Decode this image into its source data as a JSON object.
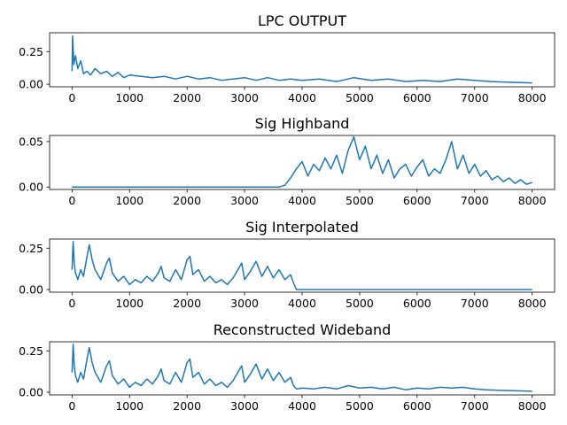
{
  "chart_data": [
    {
      "type": "line",
      "title": "LPC OUTPUT",
      "xlim": [
        -390,
        8390
      ],
      "ylim": [
        -0.02,
        0.395
      ],
      "xticks": [
        0,
        1000,
        2000,
        3000,
        4000,
        5000,
        6000,
        7000,
        8000
      ],
      "yticks": [
        0.0,
        0.25
      ],
      "ytick_labels": [
        "0.00",
        "0.25"
      ],
      "color": "#1f77b4",
      "series": [
        {
          "x": [
            0,
            10,
            30,
            60,
            100,
            150,
            200,
            260,
            320,
            400,
            500,
            600,
            700,
            800,
            900,
            1000,
            1200,
            1400,
            1600,
            1800,
            2000,
            2200,
            2400,
            2600,
            2800,
            3000,
            3200,
            3400,
            3600,
            3800,
            4000,
            4300,
            4600,
            4900,
            5200,
            5500,
            5800,
            6100,
            6400,
            6700,
            7000,
            7300,
            7600,
            8000
          ],
          "y": [
            0.1,
            0.37,
            0.15,
            0.22,
            0.12,
            0.18,
            0.08,
            0.1,
            0.07,
            0.12,
            0.08,
            0.1,
            0.06,
            0.09,
            0.05,
            0.07,
            0.06,
            0.05,
            0.06,
            0.04,
            0.06,
            0.04,
            0.05,
            0.03,
            0.04,
            0.05,
            0.03,
            0.05,
            0.03,
            0.04,
            0.03,
            0.04,
            0.02,
            0.05,
            0.03,
            0.04,
            0.02,
            0.03,
            0.02,
            0.04,
            0.03,
            0.02,
            0.015,
            0.01
          ]
        }
      ]
    },
    {
      "type": "line",
      "title": "Sig Highband",
      "xlim": [
        -390,
        8390
      ],
      "ylim": [
        -0.0027,
        0.0567
      ],
      "xticks": [
        0,
        1000,
        2000,
        3000,
        4000,
        5000,
        6000,
        7000,
        8000
      ],
      "yticks": [
        0.0,
        0.05
      ],
      "ytick_labels": [
        "0.00",
        "0.05"
      ],
      "color": "#1f77b4",
      "series": [
        {
          "x": [
            0,
            1000,
            2000,
            3000,
            3600,
            3700,
            3800,
            3900,
            4000,
            4100,
            4200,
            4300,
            4400,
            4500,
            4600,
            4700,
            4800,
            4900,
            5000,
            5100,
            5200,
            5300,
            5400,
            5500,
            5600,
            5700,
            5800,
            5900,
            6000,
            6100,
            6200,
            6300,
            6400,
            6500,
            6600,
            6700,
            6800,
            6900,
            7000,
            7100,
            7200,
            7300,
            7400,
            7500,
            7600,
            7700,
            7800,
            7900,
            8000
          ],
          "y": [
            0.0,
            0.0,
            0.0,
            0.0,
            0.0,
            0.002,
            0.01,
            0.02,
            0.028,
            0.012,
            0.025,
            0.018,
            0.032,
            0.02,
            0.035,
            0.015,
            0.04,
            0.055,
            0.03,
            0.045,
            0.02,
            0.035,
            0.015,
            0.03,
            0.01,
            0.02,
            0.025,
            0.012,
            0.022,
            0.03,
            0.012,
            0.02,
            0.015,
            0.03,
            0.05,
            0.02,
            0.035,
            0.015,
            0.025,
            0.012,
            0.018,
            0.008,
            0.012,
            0.006,
            0.01,
            0.004,
            0.008,
            0.003,
            0.005
          ]
        }
      ]
    },
    {
      "type": "line",
      "title": "Sig Interpolated",
      "xlim": [
        -390,
        8390
      ],
      "ylim": [
        -0.016,
        0.305
      ],
      "xticks": [
        0,
        1000,
        2000,
        3000,
        4000,
        5000,
        6000,
        7000,
        8000
      ],
      "yticks": [
        0.0,
        0.25
      ],
      "ytick_labels": [
        "0.00",
        "0.25"
      ],
      "color": "#1f77b4",
      "series": [
        {
          "x": [
            0,
            20,
            40,
            60,
            100,
            150,
            200,
            260,
            300,
            350,
            400,
            500,
            600,
            650,
            700,
            800,
            900,
            1000,
            1100,
            1200,
            1300,
            1400,
            1500,
            1550,
            1600,
            1700,
            1800,
            1900,
            2000,
            2050,
            2100,
            2200,
            2300,
            2400,
            2500,
            2600,
            2700,
            2800,
            2900,
            2950,
            3000,
            3100,
            3200,
            3300,
            3400,
            3500,
            3600,
            3700,
            3800,
            3850,
            3900,
            4000,
            5000,
            6000,
            7000,
            8000
          ],
          "y": [
            0.12,
            0.29,
            0.15,
            0.1,
            0.06,
            0.12,
            0.08,
            0.2,
            0.27,
            0.18,
            0.12,
            0.06,
            0.16,
            0.19,
            0.1,
            0.05,
            0.08,
            0.03,
            0.06,
            0.04,
            0.08,
            0.05,
            0.1,
            0.14,
            0.07,
            0.05,
            0.12,
            0.06,
            0.18,
            0.2,
            0.09,
            0.12,
            0.05,
            0.08,
            0.04,
            0.06,
            0.03,
            0.07,
            0.13,
            0.16,
            0.06,
            0.11,
            0.17,
            0.08,
            0.14,
            0.07,
            0.12,
            0.06,
            0.09,
            0.04,
            0.0,
            0.0,
            0.0,
            0.0,
            0.0,
            0.0
          ]
        }
      ]
    },
    {
      "type": "line",
      "title": "Reconstructed Wideband",
      "xlim": [
        -390,
        8390
      ],
      "ylim": [
        -0.016,
        0.305
      ],
      "xticks": [
        0,
        1000,
        2000,
        3000,
        4000,
        5000,
        6000,
        7000,
        8000
      ],
      "yticks": [
        0.0,
        0.25
      ],
      "ytick_labels": [
        "0.00",
        "0.25"
      ],
      "color": "#1f77b4",
      "series": [
        {
          "x": [
            0,
            20,
            40,
            60,
            100,
            150,
            200,
            260,
            300,
            350,
            400,
            500,
            600,
            650,
            700,
            800,
            900,
            1000,
            1100,
            1200,
            1300,
            1400,
            1500,
            1550,
            1600,
            1700,
            1800,
            1900,
            2000,
            2050,
            2100,
            2200,
            2300,
            2400,
            2500,
            2600,
            2700,
            2800,
            2900,
            2950,
            3000,
            3100,
            3200,
            3300,
            3400,
            3500,
            3600,
            3700,
            3800,
            3850,
            3900,
            4000,
            4200,
            4400,
            4600,
            4800,
            5000,
            5200,
            5400,
            5600,
            5800,
            6000,
            6200,
            6400,
            6600,
            6800,
            7000,
            7200,
            7400,
            7600,
            7800,
            8000
          ],
          "y": [
            0.12,
            0.29,
            0.15,
            0.1,
            0.06,
            0.12,
            0.08,
            0.2,
            0.27,
            0.18,
            0.12,
            0.06,
            0.16,
            0.19,
            0.1,
            0.05,
            0.08,
            0.03,
            0.06,
            0.04,
            0.08,
            0.05,
            0.1,
            0.14,
            0.07,
            0.05,
            0.12,
            0.06,
            0.18,
            0.2,
            0.09,
            0.12,
            0.05,
            0.08,
            0.04,
            0.06,
            0.03,
            0.07,
            0.13,
            0.16,
            0.06,
            0.11,
            0.17,
            0.08,
            0.14,
            0.07,
            0.12,
            0.06,
            0.09,
            0.04,
            0.02,
            0.025,
            0.02,
            0.03,
            0.02,
            0.04,
            0.025,
            0.03,
            0.02,
            0.03,
            0.015,
            0.025,
            0.02,
            0.03,
            0.025,
            0.03,
            0.02,
            0.015,
            0.012,
            0.01,
            0.008,
            0.006
          ]
        }
      ]
    }
  ]
}
